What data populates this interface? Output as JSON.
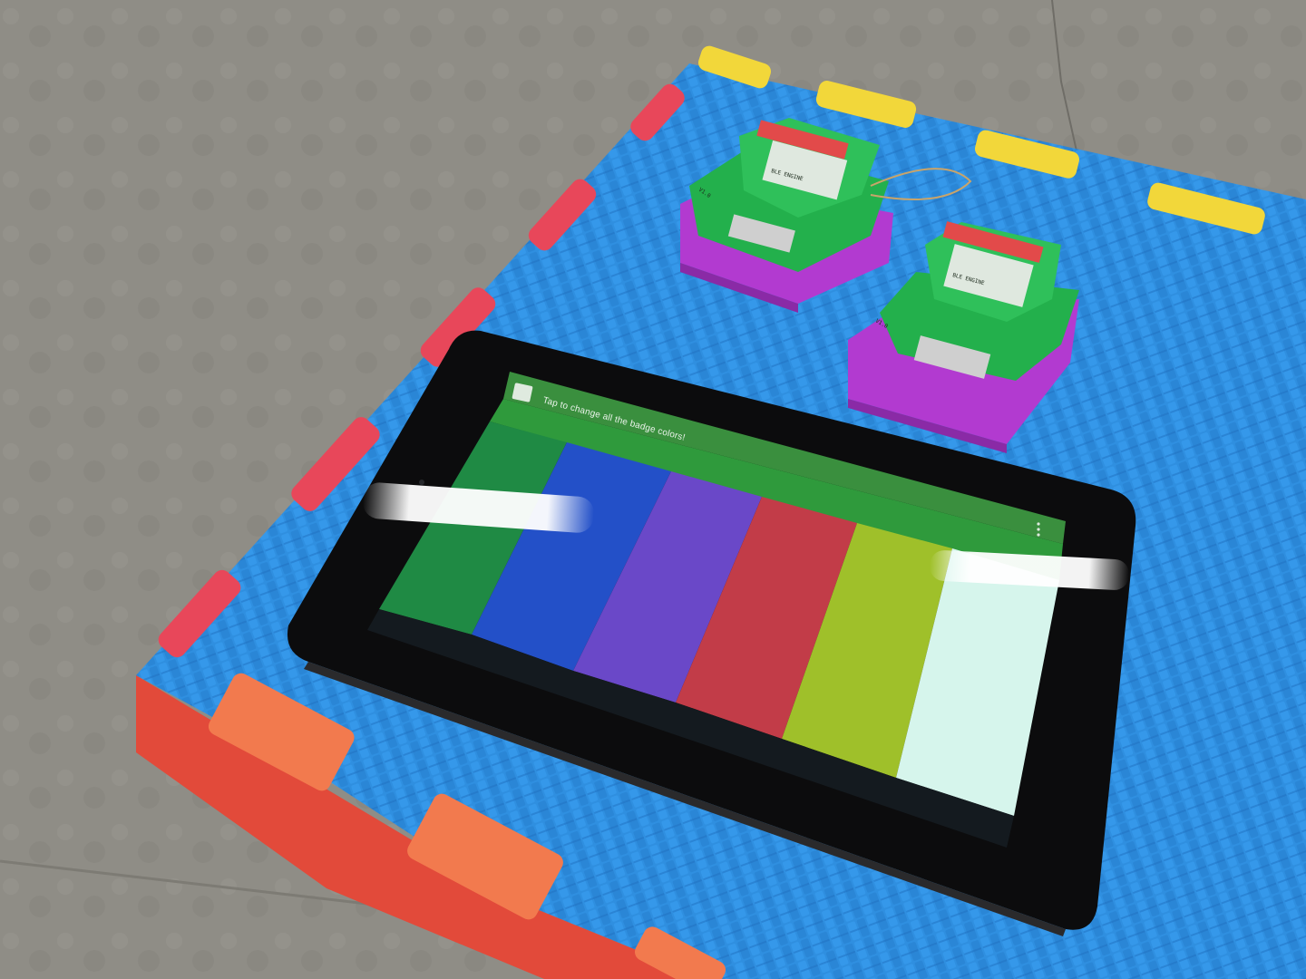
{
  "scene": {
    "description_free": true,
    "palette": {
      "floor": "#8f8d86",
      "mat": "#2f8fe0",
      "mat_shadow": "#1f6fc0",
      "edge_red": "#e8475a",
      "edge_yellow": "#f2d73a",
      "edge_orange": "#f27a4e",
      "tablet_bezel": "#0c0c0d",
      "pcb_green": "#23b04c",
      "enclosure_purple": "#b23ad0"
    },
    "tablet": {
      "notification_text": "Tap to change all the badge colors!",
      "notification_icon": "lock-screen-icon",
      "menu_icon": "overflow-menu-icon",
      "header_color": "#2f9a3c",
      "swatches": [
        {
          "name": "green",
          "color": "#1f8a44"
        },
        {
          "name": "blue",
          "color": "#2350c8"
        },
        {
          "name": "purple",
          "color": "#6a48c8"
        },
        {
          "name": "red",
          "color": "#c23c48"
        },
        {
          "name": "lime",
          "color": "#9fc02a"
        },
        {
          "name": "mint",
          "color": "#d6f5ec"
        }
      ]
    },
    "badges": [
      {
        "label": "BLE ENGINE",
        "version": "V1.0"
      },
      {
        "label": "BLE ENGINE",
        "version": "V1.0"
      }
    ]
  }
}
